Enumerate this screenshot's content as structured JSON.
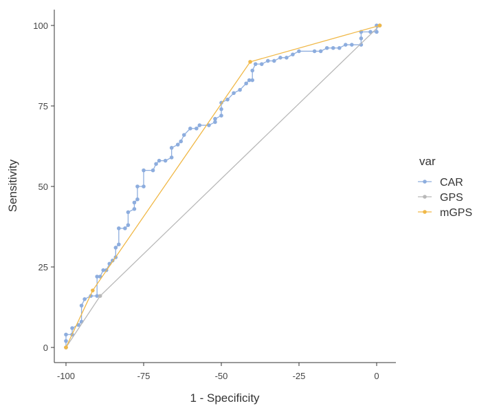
{
  "chart_data": {
    "type": "line",
    "title": "",
    "xlabel": "1 - Specificity",
    "ylabel": "Sensitivity",
    "xlim": [
      -102,
      6
    ],
    "ylim": [
      -5,
      105
    ],
    "x_ticks": [
      -100,
      -75,
      -50,
      -25,
      0
    ],
    "y_ticks": [
      0,
      25,
      50,
      75,
      100
    ],
    "x_tick_labels": [
      "-100",
      "-75",
      "-50",
      "-25",
      "0"
    ],
    "y_tick_labels": [
      "0",
      "25",
      "50",
      "75",
      "100"
    ],
    "grid": false,
    "legend": {
      "title": "var",
      "position": "right"
    },
    "series": [
      {
        "name": "CAR",
        "color": "#8dadde",
        "points": [
          [
            -100,
            0
          ],
          [
            -100,
            2
          ],
          [
            -100,
            4
          ],
          [
            -98,
            4
          ],
          [
            -98,
            6
          ],
          [
            -96,
            7
          ],
          [
            -95,
            8
          ],
          [
            -95,
            13
          ],
          [
            -94,
            15
          ],
          [
            -92,
            16
          ],
          [
            -90,
            16
          ],
          [
            -90,
            22
          ],
          [
            -89,
            22
          ],
          [
            -88,
            24
          ],
          [
            -87,
            24
          ],
          [
            -86,
            26
          ],
          [
            -85,
            27
          ],
          [
            -84,
            28
          ],
          [
            -84,
            31
          ],
          [
            -83,
            32
          ],
          [
            -83,
            37
          ],
          [
            -81,
            37
          ],
          [
            -80,
            38
          ],
          [
            -80,
            42
          ],
          [
            -78,
            43
          ],
          [
            -78,
            45
          ],
          [
            -77,
            46
          ],
          [
            -77,
            50
          ],
          [
            -75,
            50
          ],
          [
            -75,
            55
          ],
          [
            -72,
            55
          ],
          [
            -71,
            57
          ],
          [
            -70,
            58
          ],
          [
            -68,
            58
          ],
          [
            -66,
            59
          ],
          [
            -66,
            62
          ],
          [
            -64,
            63
          ],
          [
            -63,
            64
          ],
          [
            -62,
            66
          ],
          [
            -60,
            68
          ],
          [
            -58,
            68
          ],
          [
            -57,
            69
          ],
          [
            -54,
            69
          ],
          [
            -52,
            70
          ],
          [
            -52,
            71
          ],
          [
            -50,
            72
          ],
          [
            -50,
            74
          ],
          [
            -50,
            76
          ],
          [
            -48,
            77
          ],
          [
            -46,
            79
          ],
          [
            -44,
            80
          ],
          [
            -42,
            82
          ],
          [
            -41,
            83
          ],
          [
            -40,
            83
          ],
          [
            -40,
            86
          ],
          [
            -39,
            88
          ],
          [
            -37,
            88
          ],
          [
            -35,
            89
          ],
          [
            -33,
            89
          ],
          [
            -31,
            90
          ],
          [
            -29,
            90
          ],
          [
            -27,
            91
          ],
          [
            -25,
            92
          ],
          [
            -20,
            92
          ],
          [
            -18,
            92
          ],
          [
            -16,
            93
          ],
          [
            -14,
            93
          ],
          [
            -12,
            93
          ],
          [
            -10,
            94
          ],
          [
            -8,
            94
          ],
          [
            -5,
            94
          ],
          [
            -5,
            96
          ],
          [
            -5,
            98
          ],
          [
            -2,
            98
          ],
          [
            0,
            98
          ],
          [
            0,
            100
          ],
          [
            1,
            100
          ]
        ]
      },
      {
        "name": "GPS",
        "color": "#b8b8b8",
        "points": [
          [
            -100,
            0
          ],
          [
            -89,
            16
          ],
          [
            1,
            100
          ]
        ]
      },
      {
        "name": "mGPS",
        "color": "#f0b847",
        "points": [
          [
            -100,
            0
          ],
          [
            -91.4,
            17.7
          ],
          [
            -40.7,
            88.7
          ],
          [
            1,
            100
          ]
        ]
      }
    ]
  }
}
